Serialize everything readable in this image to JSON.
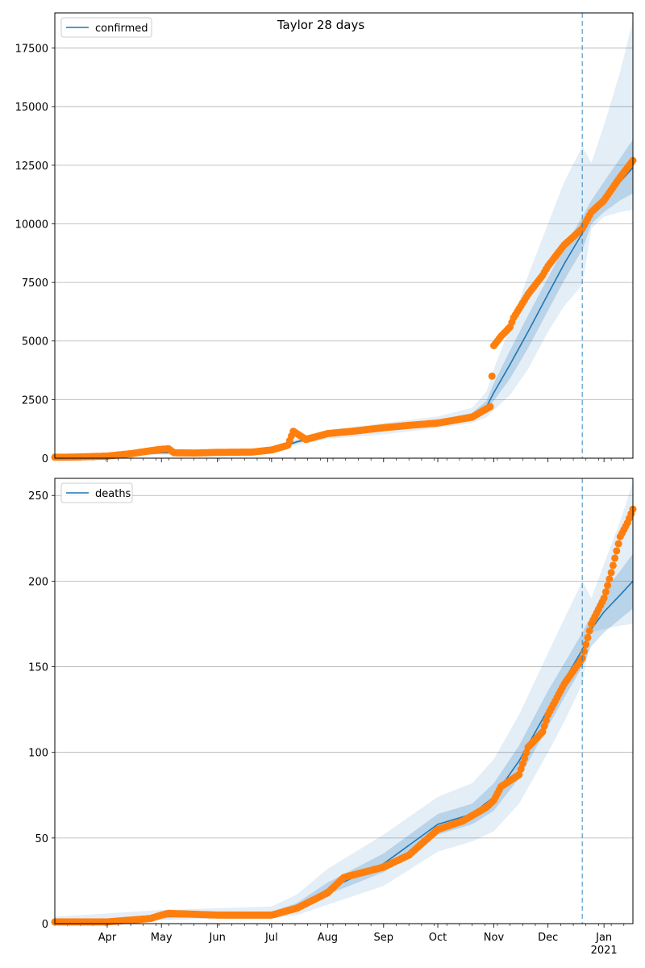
{
  "chart_data": [
    {
      "type": "line",
      "title": "Taylor 28 days",
      "xlabel": "",
      "ylabel": "",
      "legend": {
        "position": "top-left",
        "entries": [
          "confirmed"
        ]
      },
      "grid": "horizontal",
      "x_range": [
        "2020-03-03",
        "2021-01-17"
      ],
      "ylim": [
        0,
        19000
      ],
      "yticks": [
        0,
        2500,
        5000,
        7500,
        10000,
        12500,
        15000,
        17500
      ],
      "xticks": [
        {
          "date": "2020-04-01",
          "label": "Apr"
        },
        {
          "date": "2020-05-01",
          "label": "May"
        },
        {
          "date": "2020-06-01",
          "label": "Jun"
        },
        {
          "date": "2020-07-01",
          "label": "Jul"
        },
        {
          "date": "2020-08-01",
          "label": "Aug"
        },
        {
          "date": "2020-09-01",
          "label": "Sep"
        },
        {
          "date": "2020-10-01",
          "label": "Oct"
        },
        {
          "date": "2020-11-01",
          "label": "Nov"
        },
        {
          "date": "2020-12-01",
          "label": "Dec"
        },
        {
          "date": "2021-01-01",
          "label": "Jan\n2021"
        }
      ],
      "forecast_start": "2020-12-20",
      "colors": {
        "model": "#1f77b4",
        "observed": "#ff7f0e",
        "band": "#1f77b4"
      },
      "model": {
        "name": "confirmed",
        "dates": [
          "2020-03-03",
          "2020-04-01",
          "2020-05-01",
          "2020-06-01",
          "2020-07-01",
          "2020-07-15",
          "2020-08-01",
          "2020-09-01",
          "2020-10-01",
          "2020-10-20",
          "2020-10-28",
          "2020-11-01",
          "2020-11-10",
          "2020-11-20",
          "2020-12-01",
          "2020-12-10",
          "2020-12-20",
          "2020-12-25",
          "2021-01-01",
          "2021-01-10",
          "2021-01-17"
        ],
        "values": [
          50,
          90,
          230,
          240,
          330,
          700,
          1000,
          1250,
          1520,
          1800,
          2200,
          2800,
          4000,
          5400,
          7000,
          8300,
          9600,
          10400,
          11000,
          11800,
          12400
        ],
        "band_inner": {
          "lower": [
            40,
            75,
            200,
            210,
            290,
            640,
            920,
            1150,
            1410,
            1670,
            2000,
            2450,
            3400,
            4700,
            6300,
            7600,
            8900,
            10000,
            10500,
            11000,
            11300
          ],
          "upper": [
            60,
            105,
            260,
            270,
            370,
            760,
            1080,
            1350,
            1630,
            1930,
            2450,
            3200,
            4600,
            6100,
            7700,
            9000,
            10300,
            11000,
            11800,
            12800,
            13600
          ]
        },
        "band_outer": {
          "lower": [
            20,
            50,
            150,
            160,
            230,
            560,
            820,
            1020,
            1280,
            1500,
            1750,
            2050,
            2700,
            3800,
            5400,
            6500,
            7400,
            9800,
            10300,
            10500,
            10600
          ],
          "upper": [
            80,
            130,
            310,
            320,
            430,
            850,
            1200,
            1500,
            1780,
            2150,
            2850,
            3800,
            5600,
            7800,
            10000,
            11800,
            13300,
            12600,
            14200,
            16500,
            18700
          ]
        }
      },
      "observed": {
        "dates": [
          "2020-03-03",
          "2020-03-15",
          "2020-04-01",
          "2020-04-15",
          "2020-04-25",
          "2020-05-01",
          "2020-05-05",
          "2020-05-08",
          "2020-05-20",
          "2020-06-01",
          "2020-06-20",
          "2020-07-01",
          "2020-07-10",
          "2020-07-13",
          "2020-07-20",
          "2020-08-01",
          "2020-08-15",
          "2020-09-01",
          "2020-09-15",
          "2020-10-01",
          "2020-10-20",
          "2020-10-30",
          "2020-11-01",
          "2020-11-05",
          "2020-11-10",
          "2020-11-12",
          "2020-11-20",
          "2020-11-28",
          "2020-12-01",
          "2020-12-10",
          "2020-12-20",
          "2020-12-25",
          "2021-01-01",
          "2021-01-10",
          "2021-01-17"
        ],
        "values": [
          40,
          50,
          90,
          200,
          320,
          380,
          400,
          230,
          220,
          250,
          260,
          350,
          550,
          1150,
          800,
          1050,
          1150,
          1300,
          1400,
          1500,
          1750,
          2200,
          4800,
          5200,
          5600,
          6000,
          7000,
          7800,
          8200,
          9100,
          9800,
          10500,
          11000,
          12000,
          12700
        ]
      }
    },
    {
      "type": "line",
      "title": "",
      "xlabel": "",
      "ylabel": "",
      "legend": {
        "position": "top-left",
        "entries": [
          "deaths"
        ]
      },
      "grid": "horizontal",
      "x_range": [
        "2020-03-03",
        "2021-01-17"
      ],
      "ylim": [
        0,
        260
      ],
      "yticks": [
        0,
        50,
        100,
        150,
        200,
        250
      ],
      "xticks": [
        {
          "date": "2020-04-01",
          "label": "Apr"
        },
        {
          "date": "2020-05-01",
          "label": "May"
        },
        {
          "date": "2020-06-01",
          "label": "Jun"
        },
        {
          "date": "2020-07-01",
          "label": "Jul"
        },
        {
          "date": "2020-08-01",
          "label": "Aug"
        },
        {
          "date": "2020-09-01",
          "label": "Sep"
        },
        {
          "date": "2020-10-01",
          "label": "Oct"
        },
        {
          "date": "2020-11-01",
          "label": "Nov"
        },
        {
          "date": "2020-12-01",
          "label": "Dec"
        },
        {
          "date": "2021-01-01",
          "label": "Jan\n2021"
        }
      ],
      "forecast_start": "2020-12-20",
      "colors": {
        "model": "#1f77b4",
        "observed": "#ff7f0e",
        "band": "#1f77b4"
      },
      "model": {
        "name": "deaths",
        "dates": [
          "2020-03-03",
          "2020-04-01",
          "2020-05-01",
          "2020-06-01",
          "2020-07-01",
          "2020-07-15",
          "2020-08-01",
          "2020-09-01",
          "2020-10-01",
          "2020-10-20",
          "2020-11-01",
          "2020-11-15",
          "2020-12-01",
          "2020-12-10",
          "2020-12-20",
          "2020-12-25",
          "2021-01-01",
          "2021-01-10",
          "2021-01-17"
        ],
        "values": [
          1,
          2,
          4,
          5,
          6,
          10,
          20,
          35,
          58,
          64,
          74,
          95,
          125,
          142,
          160,
          172,
          182,
          192,
          200
        ],
        "band_inner": {
          "lower": [
            0,
            1,
            3,
            4,
            5,
            8,
            17,
            30,
            52,
            58,
            66,
            85,
            115,
            132,
            150,
            162,
            170,
            178,
            184
          ],
          "upper": [
            2,
            3,
            5,
            6,
            7,
            12,
            24,
            41,
            64,
            70,
            82,
            104,
            136,
            152,
            170,
            180,
            194,
            206,
            216
          ]
        },
        "band_outer": {
          "lower": [
            0,
            0,
            2,
            3,
            3,
            5,
            11,
            22,
            42,
            48,
            54,
            70,
            100,
            118,
            140,
            170,
            172,
            174,
            175
          ],
          "upper": [
            4,
            6,
            8,
            9,
            10,
            17,
            32,
            52,
            74,
            82,
            96,
            122,
            158,
            178,
            200,
            190,
            210,
            235,
            258
          ]
        }
      },
      "observed": {
        "dates": [
          "2020-03-03",
          "2020-04-01",
          "2020-04-25",
          "2020-05-01",
          "2020-05-05",
          "2020-06-01",
          "2020-07-01",
          "2020-07-15",
          "2020-08-01",
          "2020-08-10",
          "2020-09-01",
          "2020-09-15",
          "2020-10-01",
          "2020-10-15",
          "2020-10-28",
          "2020-11-01",
          "2020-11-05",
          "2020-11-15",
          "2020-11-20",
          "2020-11-28",
          "2020-12-01",
          "2020-12-10",
          "2020-12-20",
          "2020-12-25",
          "2021-01-01",
          "2021-01-05",
          "2021-01-10",
          "2021-01-14",
          "2021-01-17"
        ],
        "values": [
          1,
          1,
          3,
          5,
          6,
          5,
          5,
          9,
          18,
          27,
          33,
          40,
          55,
          60,
          68,
          72,
          80,
          87,
          103,
          112,
          122,
          140,
          155,
          175,
          190,
          205,
          226,
          234,
          242
        ]
      }
    }
  ]
}
